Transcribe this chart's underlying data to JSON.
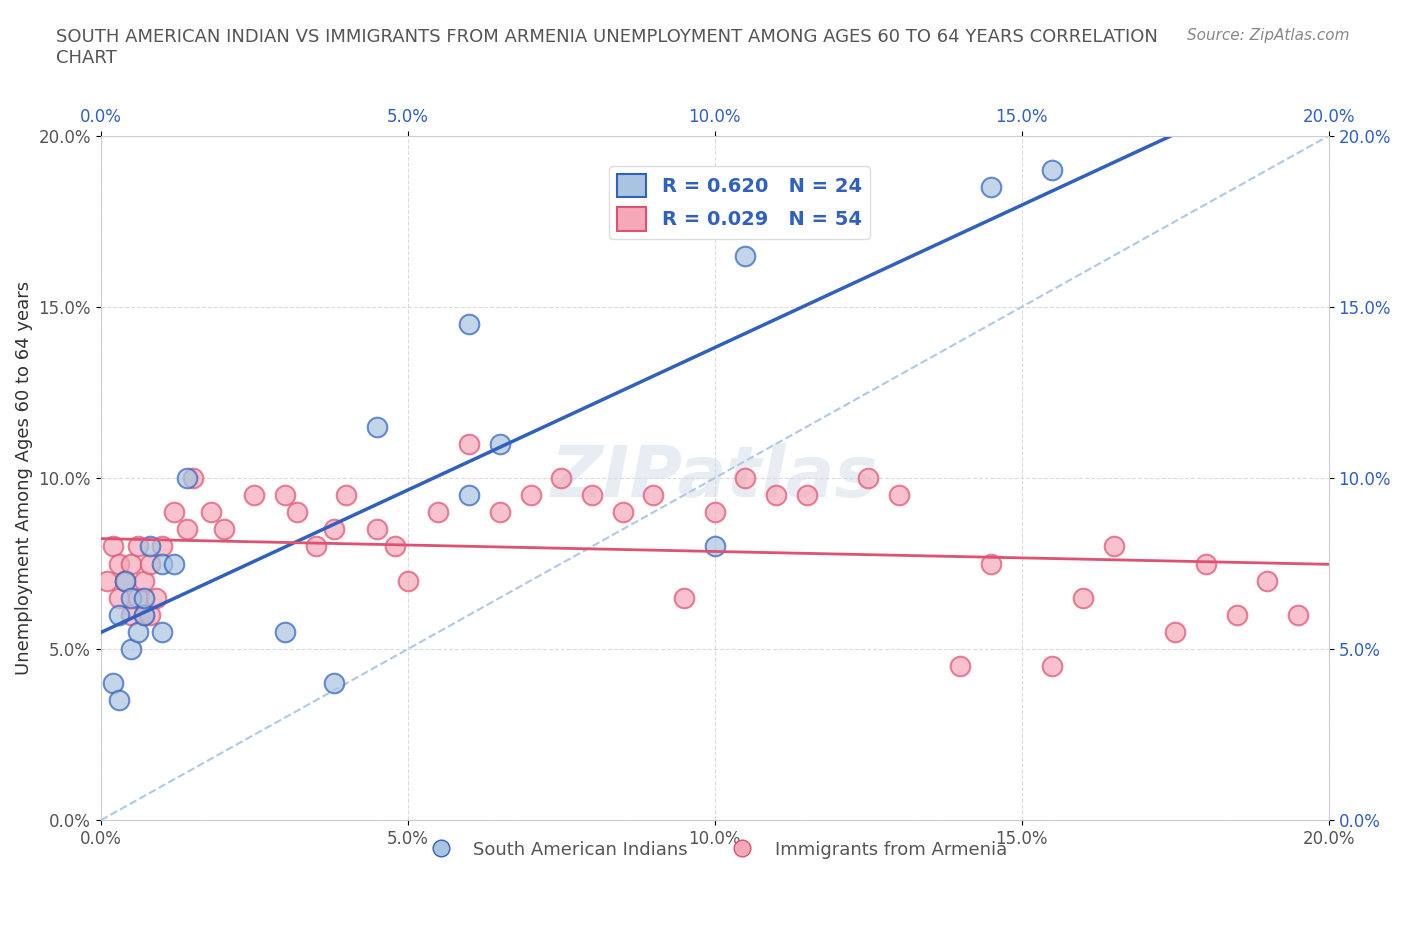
{
  "title": "SOUTH AMERICAN INDIAN VS IMMIGRANTS FROM ARMENIA UNEMPLOYMENT AMONG AGES 60 TO 64 YEARS CORRELATION\nCHART",
  "source": "Source: ZipAtlas.com",
  "xlabel_bottom": "",
  "ylabel": "Unemployment Among Ages 60 to 64 years",
  "xmin": 0.0,
  "xmax": 0.2,
  "ymin": 0.0,
  "ymax": 0.2,
  "xticks": [
    0.0,
    0.05,
    0.1,
    0.15,
    0.2
  ],
  "yticks": [
    0.0,
    0.05,
    0.1,
    0.15,
    0.2
  ],
  "xticklabels": [
    "0.0%",
    "5.0%",
    "10.0%",
    "15.0%",
    "20.0%"
  ],
  "yticklabels": [
    "0.0%",
    "5.0%",
    "10.0%",
    "15.0%",
    "20.0%"
  ],
  "blue_R": 0.62,
  "blue_N": 24,
  "pink_R": 0.029,
  "pink_N": 54,
  "legend_label_blue": "South American Indians",
  "legend_label_pink": "Immigrants from Armenia",
  "watermark": "ZIPatlas",
  "blue_color": "#a8c4e0",
  "pink_color": "#f4a8b8",
  "blue_line_color": "#3060c0",
  "pink_line_color": "#e05070",
  "dashed_line_color": "#b0c8e8",
  "blue_scatter_x": [
    0.002,
    0.003,
    0.003,
    0.004,
    0.005,
    0.005,
    0.006,
    0.007,
    0.007,
    0.008,
    0.01,
    0.01,
    0.012,
    0.014,
    0.03,
    0.038,
    0.045,
    0.06,
    0.06,
    0.065,
    0.1,
    0.105,
    0.145,
    0.155
  ],
  "blue_scatter_y": [
    0.04,
    0.035,
    0.06,
    0.07,
    0.05,
    0.065,
    0.055,
    0.06,
    0.065,
    0.08,
    0.055,
    0.075,
    0.075,
    0.1,
    0.055,
    0.04,
    0.115,
    0.095,
    0.145,
    0.11,
    0.08,
    0.165,
    0.185,
    0.19
  ],
  "pink_scatter_x": [
    0.001,
    0.002,
    0.003,
    0.003,
    0.004,
    0.005,
    0.005,
    0.006,
    0.006,
    0.007,
    0.007,
    0.008,
    0.008,
    0.009,
    0.01,
    0.012,
    0.014,
    0.015,
    0.018,
    0.02,
    0.025,
    0.03,
    0.032,
    0.035,
    0.038,
    0.04,
    0.045,
    0.048,
    0.05,
    0.055,
    0.06,
    0.065,
    0.07,
    0.075,
    0.08,
    0.085,
    0.09,
    0.095,
    0.1,
    0.105,
    0.11,
    0.115,
    0.125,
    0.13,
    0.14,
    0.145,
    0.155,
    0.16,
    0.165,
    0.175,
    0.18,
    0.185,
    0.19,
    0.195
  ],
  "pink_scatter_y": [
    0.07,
    0.08,
    0.065,
    0.075,
    0.07,
    0.06,
    0.075,
    0.065,
    0.08,
    0.06,
    0.07,
    0.075,
    0.06,
    0.065,
    0.08,
    0.09,
    0.085,
    0.1,
    0.09,
    0.085,
    0.095,
    0.095,
    0.09,
    0.08,
    0.085,
    0.095,
    0.085,
    0.08,
    0.07,
    0.09,
    0.11,
    0.09,
    0.095,
    0.1,
    0.095,
    0.09,
    0.095,
    0.065,
    0.09,
    0.1,
    0.095,
    0.095,
    0.1,
    0.095,
    0.045,
    0.075,
    0.045,
    0.065,
    0.08,
    0.055,
    0.075,
    0.06,
    0.07,
    0.06
  ]
}
